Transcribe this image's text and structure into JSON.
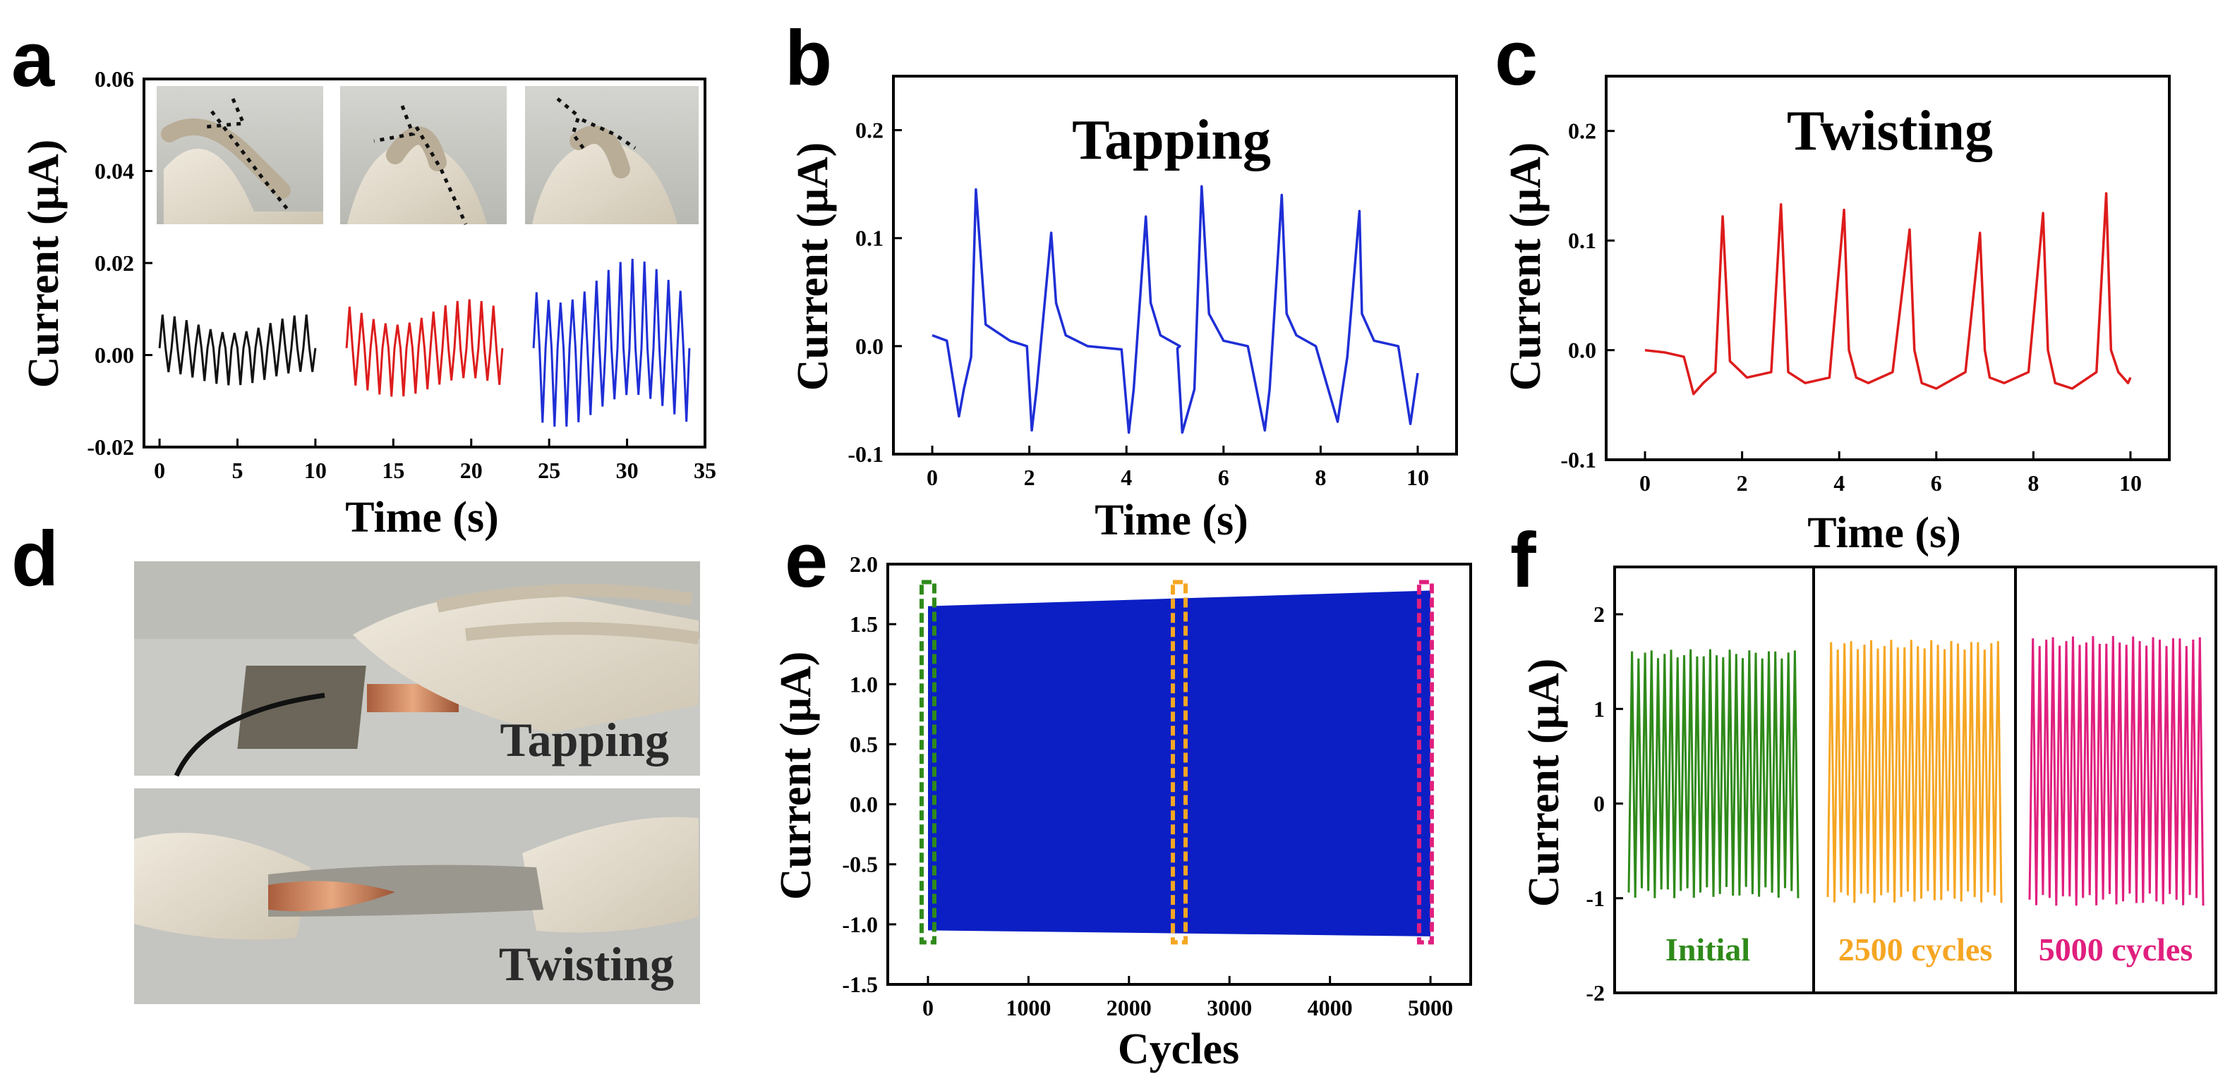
{
  "labels": {
    "a": "a",
    "b": "b",
    "c": "c",
    "d": "d",
    "e": "e",
    "f": "f"
  },
  "colors": {
    "black": "#111111",
    "red": "#dd1c1c",
    "blue": "#1f2fd6",
    "blue_fill": "#0b1fc4",
    "green": "#2f8a1a",
    "orange": "#f5a623",
    "pink": "#e01f7e"
  },
  "chart_data": [
    {
      "panel": "a",
      "type": "line",
      "xlabel": "Time (s)",
      "ylabel": "Current (μA)",
      "xlim": [
        -1,
        35
      ],
      "ylim": [
        -0.02,
        0.06
      ],
      "xticks": [
        "0",
        "5",
        "10",
        "15",
        "20",
        "25",
        "30",
        "35"
      ],
      "yticks": [
        "-0.02",
        "0.00",
        "0.02",
        "0.04",
        "0.06"
      ],
      "series": [
        {
          "x_range": [
            0,
            10
          ],
          "cycles": 13,
          "amplitude": 0.008,
          "color": "black"
        },
        {
          "x_range": [
            12,
            22
          ],
          "cycles": 13,
          "amplitude": 0.011,
          "color": "red"
        },
        {
          "x_range": [
            24,
            34
          ],
          "cycles": 13,
          "amplitude": 0.019,
          "color": "blue"
        }
      ]
    },
    {
      "panel": "b",
      "type": "line",
      "title": "Tapping",
      "xlabel": "Time (s)",
      "ylabel": "Current (μA)",
      "xlim": [
        -0.8,
        10.8
      ],
      "ylim": [
        -0.1,
        0.25
      ],
      "xticks": [
        "0",
        "2",
        "4",
        "6",
        "8",
        "10"
      ],
      "yticks": [
        "-0.1",
        "0.0",
        "0.1",
        "0.2"
      ],
      "series": [
        {
          "color": "blue",
          "x": [
            0,
            0.3,
            0.55,
            0.65,
            0.8,
            0.9,
            1.1,
            1.6,
            1.95,
            2.05,
            2.15,
            2.45,
            2.55,
            2.75,
            3.2,
            3.9,
            4.05,
            4.15,
            4.4,
            4.5,
            4.7,
            5.1,
            5.05,
            5.15,
            5.4,
            5.55,
            5.7,
            6.0,
            6.5,
            6.85,
            6.95,
            7.2,
            7.3,
            7.5,
            7.9,
            8.35,
            8.45,
            8.55,
            8.8,
            8.85,
            9.1,
            9.6,
            9.85,
            10.0
          ],
          "y": [
            0.01,
            0.005,
            -0.065,
            -0.04,
            -0.01,
            0.145,
            0.02,
            0.005,
            0.0,
            -0.078,
            -0.04,
            0.105,
            0.04,
            0.01,
            0.0,
            -0.003,
            -0.08,
            -0.04,
            0.12,
            0.04,
            0.01,
            0.0,
            -0.002,
            -0.08,
            -0.04,
            0.148,
            0.03,
            0.005,
            0.0,
            -0.078,
            -0.04,
            0.14,
            0.03,
            0.01,
            0.0,
            -0.07,
            -0.04,
            -0.01,
            0.125,
            0.03,
            0.005,
            0.0,
            -0.072,
            -0.025
          ]
        }
      ]
    },
    {
      "panel": "c",
      "type": "line",
      "title": "Twisting",
      "xlabel": "Time (s)",
      "ylabel": "Current (μA)",
      "xlim": [
        -0.8,
        10.8
      ],
      "ylim": [
        -0.1,
        0.25
      ],
      "xticks": [
        "0",
        "2",
        "4",
        "6",
        "8",
        "10"
      ],
      "yticks": [
        "-0.1",
        "0.0",
        "0.1",
        "0.2"
      ],
      "series": [
        {
          "color": "red",
          "x": [
            0,
            0.4,
            0.8,
            1.0,
            1.2,
            1.45,
            1.6,
            1.75,
            2.1,
            2.6,
            2.8,
            2.95,
            3.3,
            3.8,
            4.1,
            4.2,
            4.35,
            4.6,
            5.1,
            5.45,
            5.55,
            5.7,
            6.0,
            6.6,
            6.9,
            7.0,
            7.1,
            7.4,
            7.9,
            8.2,
            8.3,
            8.45,
            8.8,
            9.3,
            9.5,
            9.6,
            9.75,
            9.95,
            10.0
          ],
          "y": [
            0.0,
            -0.002,
            -0.006,
            -0.04,
            -0.03,
            -0.02,
            0.122,
            -0.01,
            -0.025,
            -0.02,
            0.133,
            -0.02,
            -0.03,
            -0.025,
            0.128,
            0.0,
            -0.025,
            -0.03,
            -0.02,
            0.11,
            0.0,
            -0.03,
            -0.035,
            -0.02,
            0.107,
            0.0,
            -0.025,
            -0.03,
            -0.02,
            0.125,
            0.0,
            -0.03,
            -0.035,
            -0.02,
            0.143,
            0.0,
            -0.02,
            -0.03,
            -0.025
          ]
        }
      ]
    },
    {
      "panel": "e",
      "type": "area",
      "xlabel": "Cycles",
      "ylabel": "Current (μA)",
      "xlim": [
        -400,
        5400
      ],
      "ylim": [
        -1.5,
        2.0
      ],
      "xticks": [
        "0",
        "1000",
        "2000",
        "3000",
        "4000",
        "5000"
      ],
      "yticks": [
        "-1.5",
        "-1.0",
        "-0.5",
        "0.0",
        "0.5",
        "1.0",
        "1.5",
        "2.0"
      ],
      "band": {
        "x": [
          0,
          5000
        ],
        "upper": [
          1.65,
          1.78
        ],
        "lower": [
          -1.05,
          -1.1
        ],
        "color": "blue_fill"
      },
      "highlight_boxes": [
        {
          "x_center": 0,
          "color": "green"
        },
        {
          "x_center": 2500,
          "color": "orange"
        },
        {
          "x_center": 4950,
          "color": "pink"
        }
      ]
    },
    {
      "panel": "f",
      "type": "line",
      "ylabel": "Current (μA)",
      "ylim": [
        -2,
        2.5
      ],
      "yticks": [
        "-2",
        "-1",
        "0",
        "1",
        "2"
      ],
      "subpanels": [
        {
          "label": "Initial",
          "color": "green",
          "max": 1.63,
          "min": -1.0,
          "cycles": 26
        },
        {
          "label": "2500 cycles",
          "color": "orange",
          "max": 1.73,
          "min": -1.05,
          "cycles": 26
        },
        {
          "label": "5000 cycles",
          "color": "pink",
          "max": 1.77,
          "min": -1.08,
          "cycles": 26
        }
      ]
    }
  ],
  "photos": {
    "a_insets": [
      {
        "name": "finger-bend-small"
      },
      {
        "name": "finger-bend-medium"
      },
      {
        "name": "finger-bend-large"
      }
    ],
    "d": {
      "top_label": "Tapping",
      "bottom_label": "Twisting"
    }
  }
}
